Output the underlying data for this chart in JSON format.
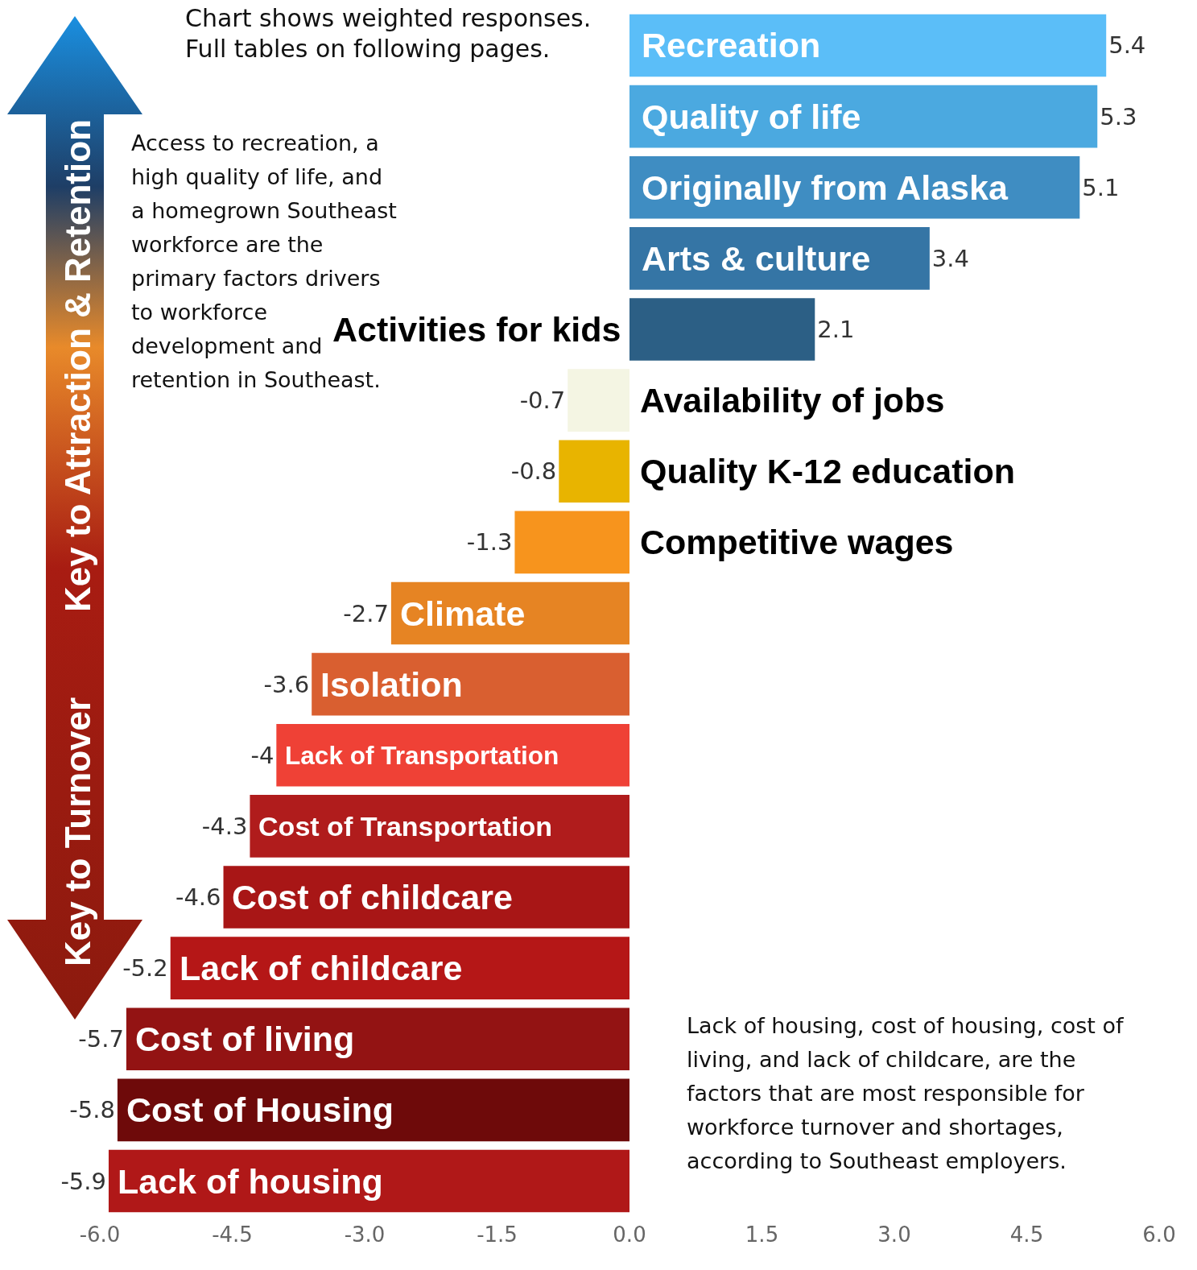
{
  "chart_data": {
    "type": "bar",
    "orientation": "horizontal",
    "categories": [
      "Recreation",
      "Quality of life",
      "Originally from Alaska",
      "Arts & culture",
      "Activities for kids",
      "Availability of jobs",
      "Quality K-12 education",
      "Competitive wages",
      "Climate",
      "Isolation",
      "Lack of Transportation",
      "Cost of Transportation",
      "Cost of childcare",
      "Lack of childcare",
      "Cost of living",
      "Cost of Housing",
      "Lack of housing"
    ],
    "values": [
      5.4,
      5.3,
      5.1,
      3.4,
      2.1,
      -0.7,
      -0.8,
      -1.3,
      -2.7,
      -3.6,
      -4,
      -4.3,
      -4.6,
      -5.2,
      -5.7,
      -5.8,
      -5.9
    ],
    "colors": [
      "#5bbef8",
      "#4ba9e0",
      "#3f8dc2",
      "#3575a5",
      "#2c5f85",
      "#f4f5e3",
      "#e8b400",
      "#f7941d",
      "#e68423",
      "#d95f30",
      "#ef4136",
      "#b01c1c",
      "#a81616",
      "#b51717",
      "#931313",
      "#6e0a0a",
      "#b01818"
    ],
    "data_labels": true,
    "xlim": [
      -6,
      6
    ],
    "xticks": [
      {
        "value": -6,
        "label": "-6.0"
      },
      {
        "value": -4.5,
        "label": "-4.5"
      },
      {
        "value": -3,
        "label": "-3.0"
      },
      {
        "value": -1.5,
        "label": "-1.5"
      },
      {
        "value": 0,
        "label": "0.0"
      },
      {
        "value": 1.5,
        "label": "1.5"
      },
      {
        "value": 3,
        "label": "3.0"
      },
      {
        "value": 4.5,
        "label": "4.5"
      },
      {
        "value": 6,
        "label": "6.0"
      }
    ],
    "tick_labels": "x",
    "annotations": [
      "Chart shows weighted responses.\nFull tables on following pages.",
      "Access to recreation, a high quality of life, and a homegrown Southeast workforce are the primary factors drivers to workforce development and retention in Southeast.",
      "Lack of housing, cost of housing, cost of living, and lack of childcare, are the factors that are most responsible for workforce turnover and shortages, according to Southeast employers.",
      "Key to Attraction & Retention",
      "Key to Turnover"
    ]
  }
}
